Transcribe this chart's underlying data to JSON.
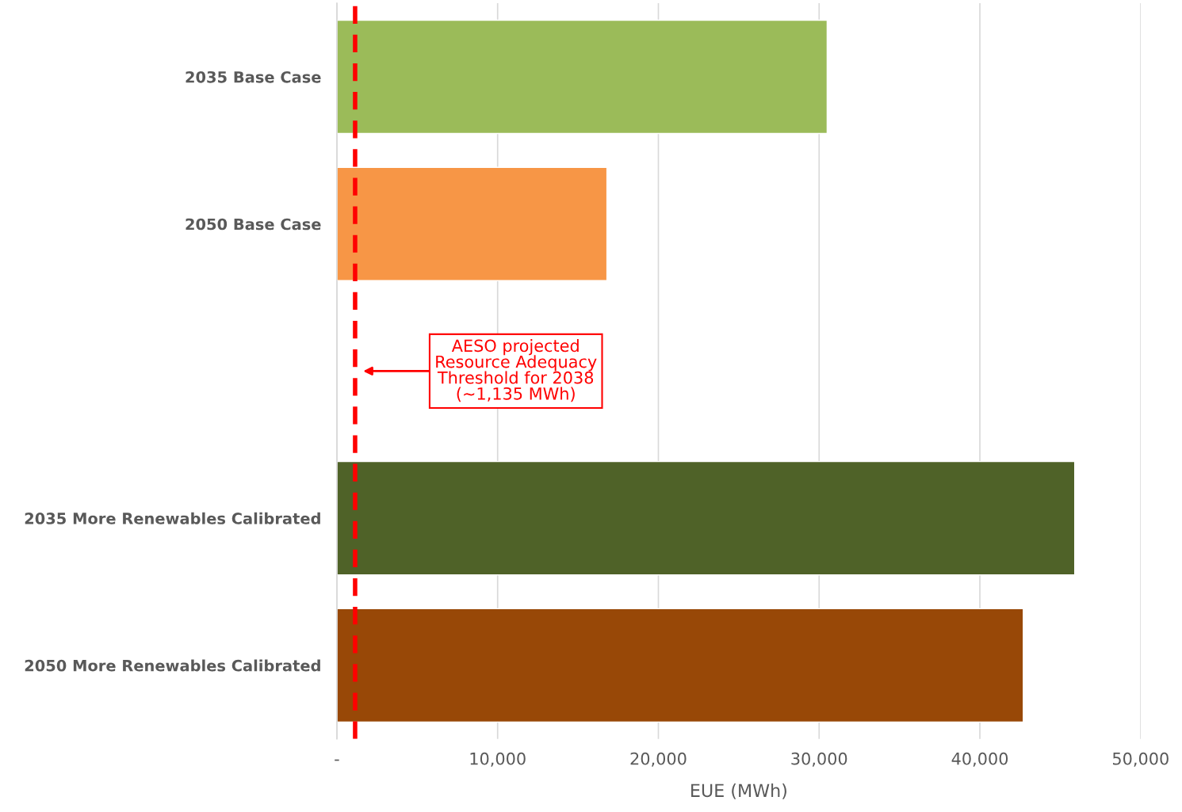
{
  "chart_data": {
    "type": "bar",
    "orientation": "horizontal",
    "categories": [
      "2035 Base Case",
      "2050 Base Case",
      null,
      "2035 More Renewables Calibrated",
      "2050 More Renewables Calibrated"
    ],
    "values": [
      30500,
      16800,
      null,
      45900,
      42700
    ],
    "colors": [
      "#9bbb59",
      "#f79646",
      "#9bbb59",
      "#4f6228",
      "#984807"
    ],
    "xlabel": "EUE (MWh)",
    "xlim": [
      0,
      50000
    ],
    "xticks": [
      {
        "value": 0,
        "label": "-"
      },
      {
        "value": 10000,
        "label": "10,000"
      },
      {
        "value": 20000,
        "label": "20,000"
      },
      {
        "value": 30000,
        "label": "30,000"
      },
      {
        "value": 40000,
        "label": "40,000"
      },
      {
        "value": 50000,
        "label": "50,000"
      }
    ],
    "grid": "x",
    "ref_lines": [
      {
        "axis": "x",
        "value": 1135,
        "label": "AESO projected\nResource Adequacy\nThreshold for 2038\n(~1,135 MWh)",
        "color": "#ff0000",
        "line_style": "dashed"
      }
    ]
  }
}
